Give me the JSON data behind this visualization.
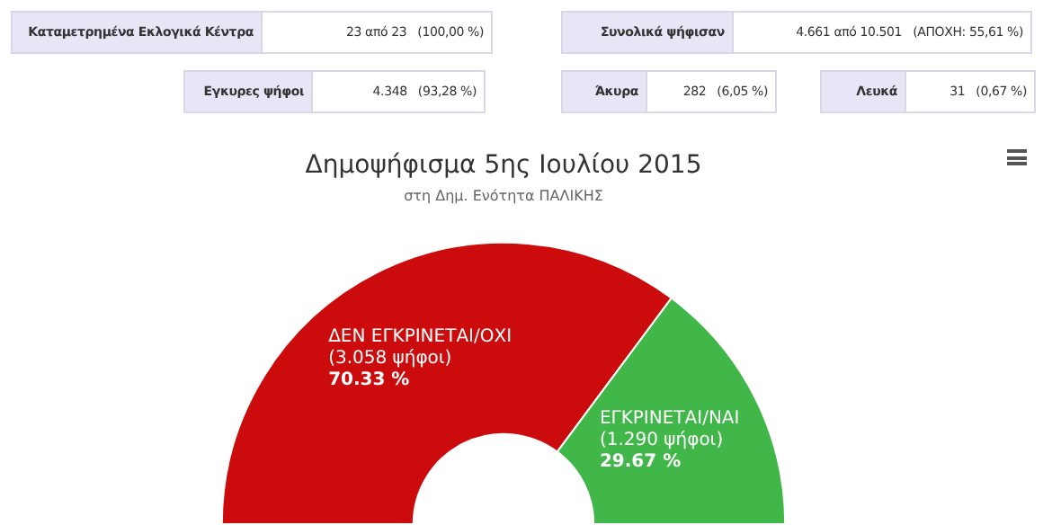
{
  "chart_data": {
    "type": "donut",
    "title": "Δημοψήφισμα 5ης Ιουλίου 2015",
    "subtitle": "στη Δημ. Ενότητα ΠΑΛΙΚΗΣ",
    "categories": [
      "ΔΕΝ ΕΓΚΡΙΝΕΤΑΙ/ΟΧΙ",
      "ΕΓΚΡΙΝΕΤΑΙ/ΝΑΙ"
    ],
    "values": [
      3058,
      1290
    ],
    "colors": [
      "#cc0c0c",
      "#41b649"
    ],
    "value_labels": [
      "(3.058 ψήφοι)\n70.33 %",
      "(1.290 ψήφοι)\n29.67 %"
    ],
    "legend": false,
    "annotations": [
      "Καταμετρημένα Εκλογικά Κέντρα",
      "23 από 23   (100,00 %)",
      "Συνολικά ψήφισαν",
      "4.661 από 10.501   (ΑΠΟΧΗ: 55,61 %)",
      "Εγκυρες ψήφοι",
      "4.348   (93,28 %)",
      "Άκυρα",
      "282   (6,05 %)",
      "Λευκά",
      "31   (0,67 %)"
    ]
  }
}
